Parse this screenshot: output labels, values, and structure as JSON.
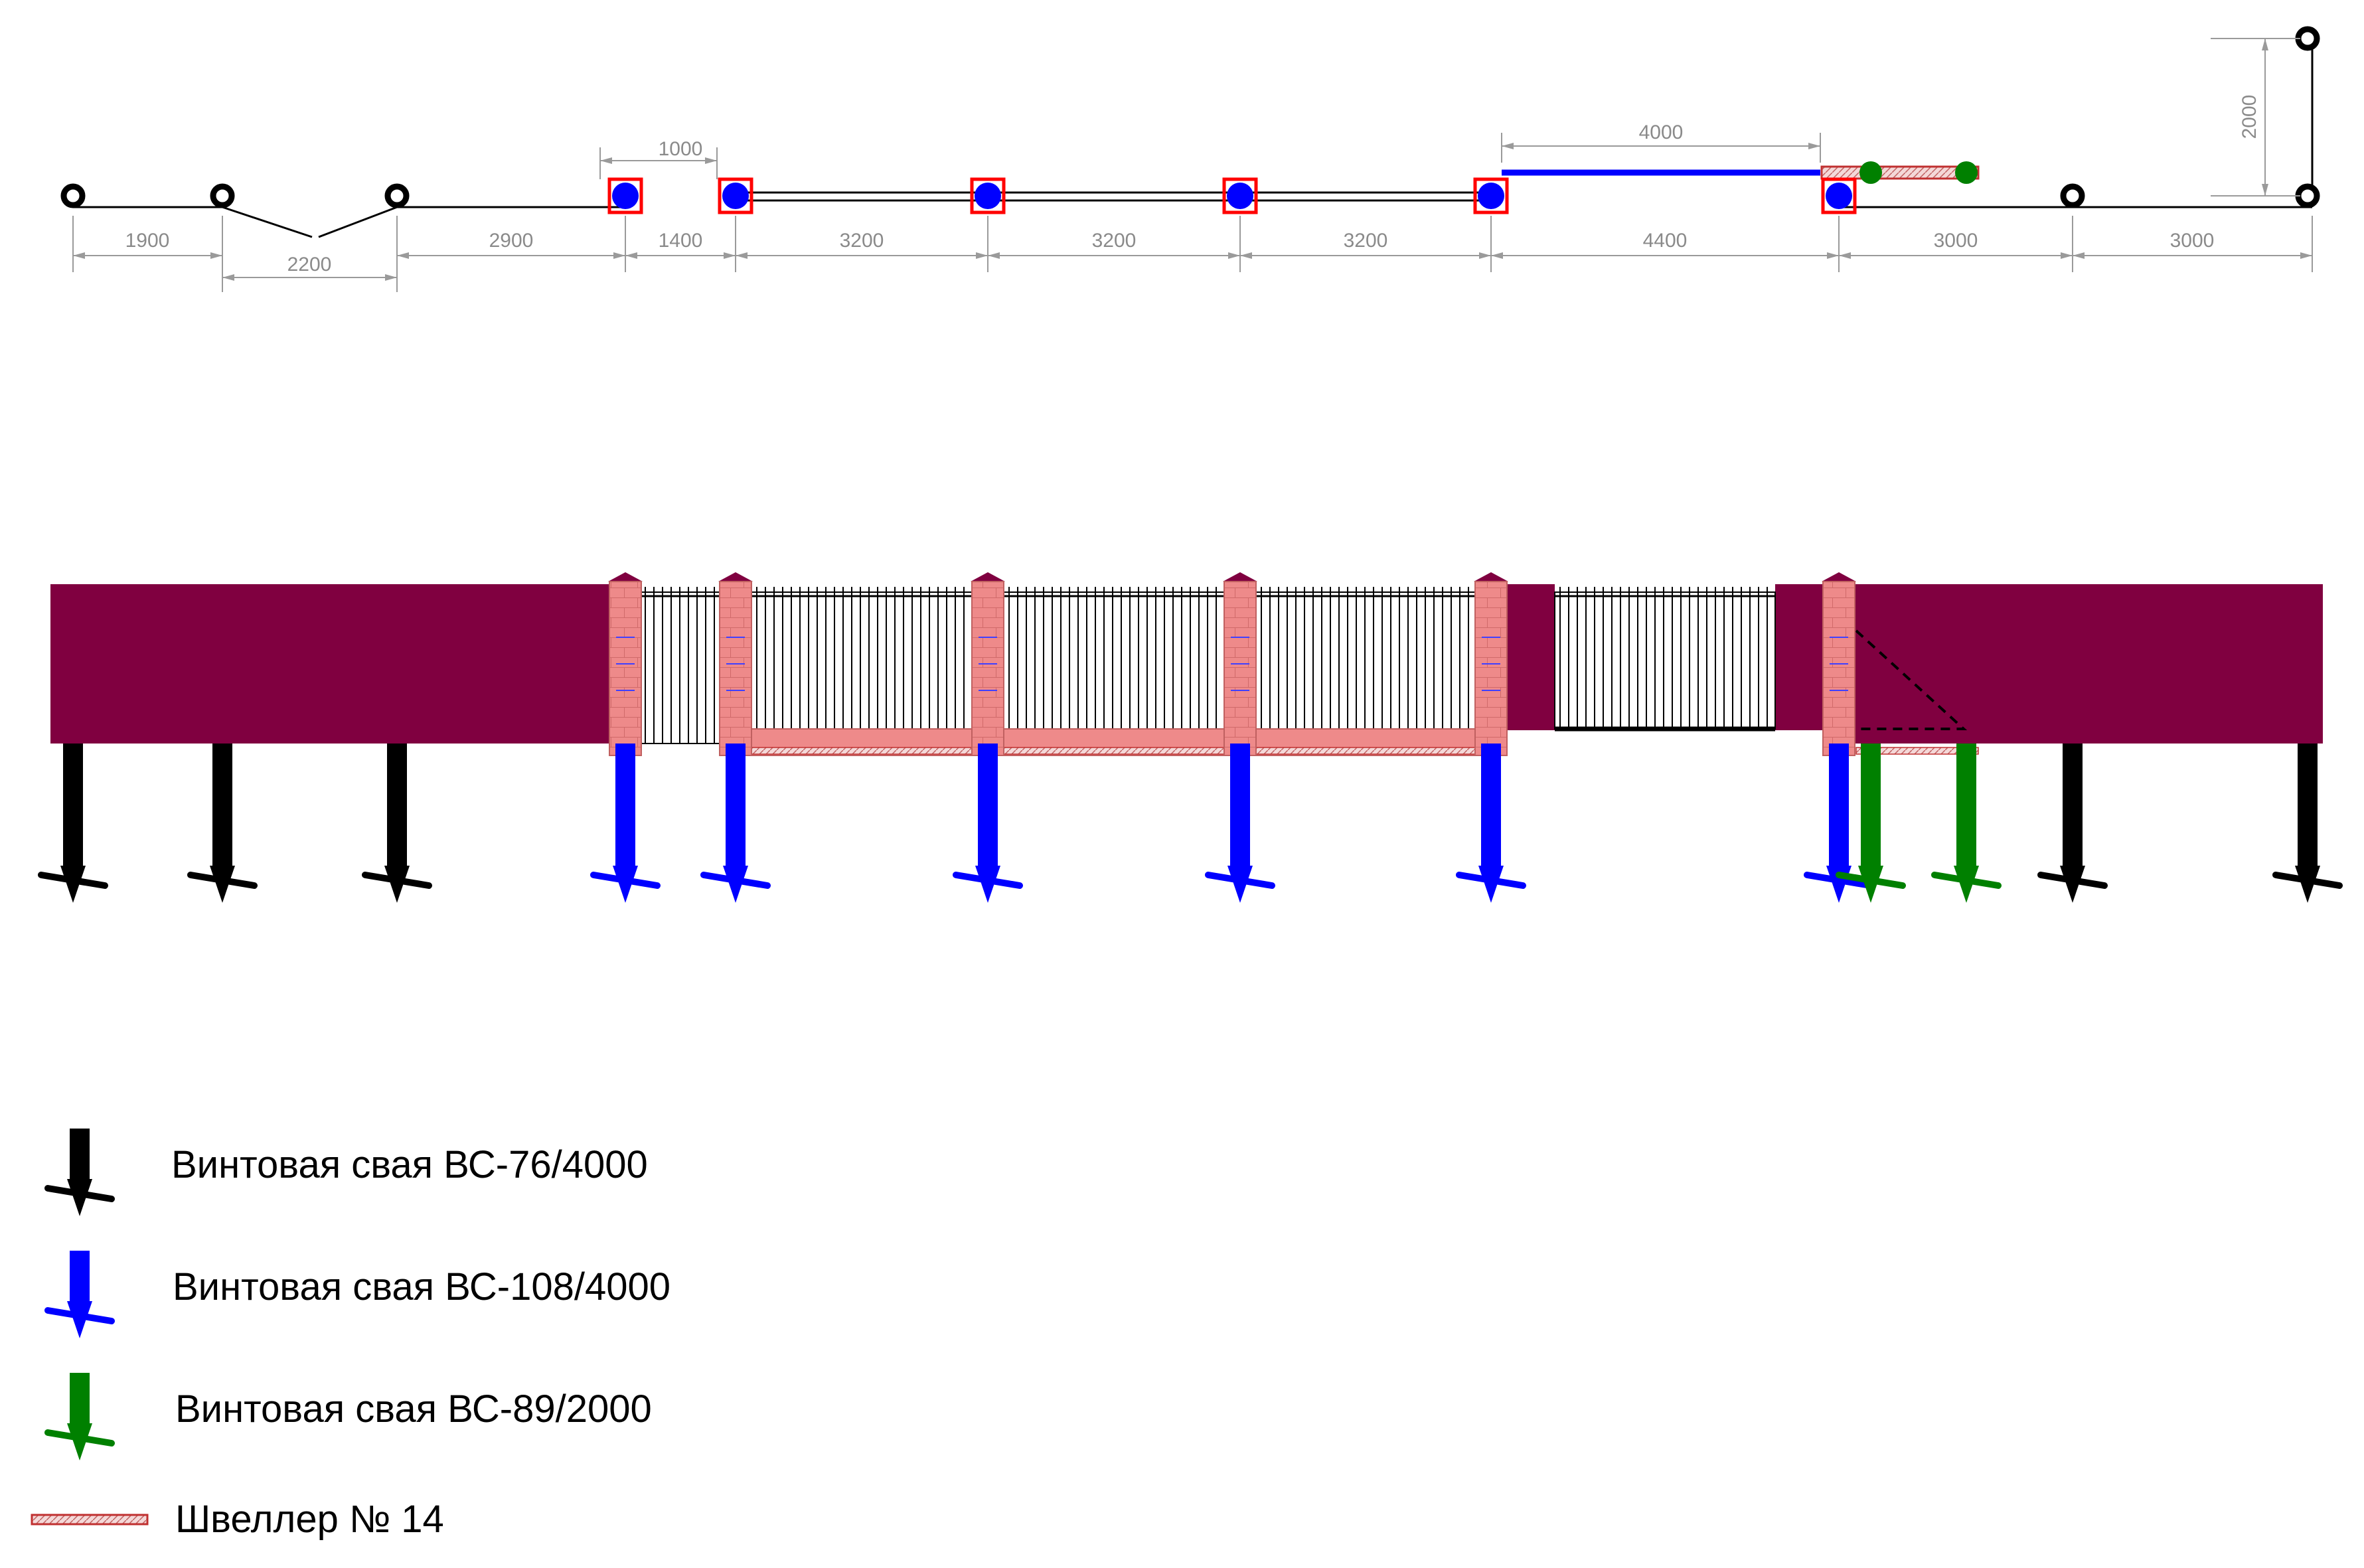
{
  "colors": {
    "pile_small": "#000000",
    "pile_large": "#0000ff",
    "pile_medium": "#008000",
    "wall": "#800040",
    "brick": "#ee8484",
    "marker_frame": "#ff0000",
    "dimension": "#8a8a8a",
    "channel": "#f0c8c8"
  },
  "plan": {
    "dimensions": {
      "segments": [
        "1900",
        "2200",
        "2900",
        "1400",
        "3200",
        "3200",
        "3200",
        "4400",
        "3000",
        "3000"
      ],
      "post_width": "1000",
      "gate_width": "4000",
      "end_offset": "2000"
    }
  },
  "elevation": {
    "posts": [
      {
        "type": "pile_small"
      },
      {
        "type": "pile_small"
      },
      {
        "type": "pile_small"
      },
      {
        "type": "pile_large"
      },
      {
        "type": "pile_large"
      },
      {
        "type": "pile_large"
      },
      {
        "type": "pile_large"
      },
      {
        "type": "pile_large"
      },
      {
        "type": "pile_large"
      },
      {
        "type": "pile_medium"
      },
      {
        "type": "pile_medium"
      },
      {
        "type": "pile_small"
      },
      {
        "type": "pile_small"
      }
    ]
  },
  "legend": [
    {
      "icon": "black-pile-arrow-icon",
      "label": "Винтовая свая ВС-76/4000"
    },
    {
      "icon": "blue-pile-arrow-icon",
      "label": "Винтовая свая ВС-108/4000"
    },
    {
      "icon": "green-pile-arrow-icon",
      "label": "Винтовая свая ВС-89/2000"
    },
    {
      "icon": "channel-beam-icon",
      "label": "Швеллер № 14"
    }
  ]
}
